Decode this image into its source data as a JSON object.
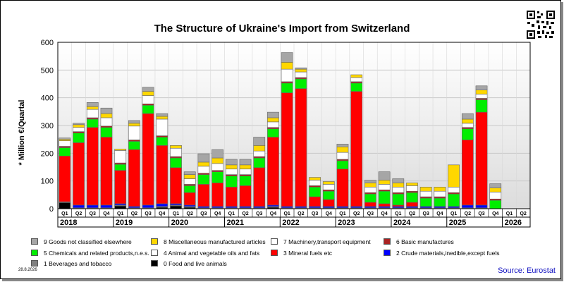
{
  "title": "The Structure of Ukraine's Import from Switzerland",
  "date": "28.8.2026",
  "source": "Source: Eurostat",
  "qr_icon": "qr-code-icon",
  "chart_data": {
    "type": "bar",
    "stacked": true,
    "ylabel": "* Million €/Quartal",
    "ylim": [
      0,
      600
    ],
    "yticks": [
      0,
      100,
      200,
      300,
      400,
      500,
      600
    ],
    "grid": true,
    "legend_position": "bottom",
    "categories": [
      "Q1",
      "Q2",
      "Q3",
      "Q4",
      "Q1",
      "Q2",
      "Q3",
      "Q4",
      "Q1",
      "Q2",
      "Q3",
      "Q4",
      "Q1",
      "Q2",
      "Q3",
      "Q4",
      "Q1",
      "Q2",
      "Q3",
      "Q4",
      "Q1",
      "Q2",
      "Q3",
      "Q4",
      "Q1",
      "Q2",
      "Q3",
      "Q4",
      "Q1",
      "Q2",
      "Q3",
      "Q4",
      "Q1",
      "Q2"
    ],
    "years": [
      "2018",
      "2019",
      "2020",
      "2021",
      "2022",
      "2023",
      "2024",
      "2025",
      "2026"
    ],
    "series": [
      {
        "name": "0 Food and live animals",
        "color": "#000000",
        "values": [
          22,
          0,
          0,
          0,
          10,
          0,
          0,
          5,
          10,
          5,
          0,
          0,
          0,
          0,
          0,
          5,
          0,
          0,
          0,
          0,
          0,
          0,
          0,
          0,
          0,
          0,
          0,
          0,
          0,
          0,
          0,
          0,
          0,
          0
        ]
      },
      {
        "name": "1 Beverages and tobacco",
        "color": "#7f7f7f",
        "values": [
          3,
          3,
          3,
          3,
          3,
          3,
          3,
          3,
          3,
          3,
          3,
          3,
          3,
          3,
          3,
          3,
          3,
          3,
          3,
          3,
          3,
          3,
          3,
          3,
          3,
          3,
          3,
          3,
          3,
          3,
          3,
          0,
          0,
          0
        ]
      },
      {
        "name": "2 Crude materials,inedible,except fuels",
        "color": "#0000ff",
        "values": [
          0,
          10,
          10,
          10,
          5,
          5,
          10,
          10,
          5,
          5,
          5,
          5,
          5,
          5,
          5,
          5,
          5,
          5,
          5,
          5,
          5,
          5,
          5,
          5,
          5,
          5,
          5,
          5,
          5,
          10,
          10,
          0,
          0,
          0
        ]
      },
      {
        "name": "3 Mineral fuels etc",
        "color": "#ff0000",
        "values": [
          165,
          225,
          280,
          245,
          120,
          205,
          330,
          210,
          130,
          45,
          80,
          85,
          70,
          75,
          140,
          245,
          410,
          425,
          35,
          25,
          135,
          415,
          15,
          10,
          5,
          15,
          0,
          0,
          0,
          235,
          335,
          0,
          0,
          0
        ]
      },
      {
        "name": "4 Animal and vegetable oils and fats",
        "color": "#ffffff",
        "values": [
          0,
          0,
          0,
          0,
          0,
          0,
          0,
          0,
          0,
          0,
          0,
          0,
          0,
          0,
          0,
          0,
          0,
          0,
          0,
          0,
          0,
          0,
          0,
          0,
          0,
          0,
          0,
          0,
          0,
          0,
          0,
          0,
          0,
          0
        ]
      },
      {
        "name": "5 Chemicals and related products,n.e.s.",
        "color": "#00ee00",
        "values": [
          30,
          35,
          30,
          35,
          22,
          30,
          30,
          30,
          35,
          25,
          35,
          40,
          40,
          35,
          35,
          30,
          35,
          35,
          35,
          30,
          30,
          30,
          30,
          45,
          40,
          35,
          30,
          30,
          45,
          40,
          45,
          30,
          0,
          0
        ]
      },
      {
        "name": "6 Basic manufactures",
        "color": "#aa2222",
        "values": [
          5,
          5,
          5,
          5,
          5,
          5,
          5,
          5,
          5,
          5,
          5,
          5,
          5,
          5,
          5,
          5,
          5,
          5,
          5,
          5,
          5,
          5,
          5,
          5,
          5,
          5,
          5,
          5,
          5,
          5,
          5,
          5,
          0,
          0
        ]
      },
      {
        "name": "7 Machinery,transport equipment",
        "color": "#ffffff",
        "values": [
          20,
          15,
          30,
          30,
          45,
          50,
          30,
          60,
          30,
          20,
          25,
          25,
          20,
          20,
          20,
          20,
          45,
          20,
          20,
          20,
          25,
          15,
          20,
          20,
          20,
          20,
          20,
          20,
          20,
          15,
          15,
          25,
          0,
          0
        ]
      },
      {
        "name": "8 Miscellaneous manufactured articles",
        "color": "#ffd700",
        "values": [
          5,
          10,
          10,
          15,
          5,
          10,
          15,
          10,
          10,
          15,
          15,
          20,
          15,
          15,
          20,
          15,
          25,
          10,
          10,
          10,
          20,
          10,
          15,
          15,
          15,
          10,
          15,
          15,
          80,
          15,
          15,
          15,
          0,
          0
        ]
      },
      {
        "name": "9 Goods not classified elsewhere",
        "color": "#a6a6a6",
        "values": [
          5,
          5,
          15,
          20,
          0,
          10,
          15,
          10,
          0,
          10,
          30,
          30,
          20,
          20,
          30,
          20,
          35,
          5,
          0,
          0,
          10,
          0,
          10,
          30,
          15,
          0,
          0,
          0,
          0,
          20,
          15,
          15,
          0,
          0
        ]
      }
    ]
  },
  "legend": [
    "9 Goods not classified elsewhere",
    "8 Miscellaneous manufactured articles",
    "7 Machinery,transport equipment",
    "6 Basic manufactures",
    "5 Chemicals and related products,n.e.s.",
    "4 Animal and vegetable oils and fats",
    "3 Mineral fuels etc",
    "2 Crude materials,inedible,except fuels",
    "1 Beverages and tobacco",
    "0 Food and live animals"
  ]
}
